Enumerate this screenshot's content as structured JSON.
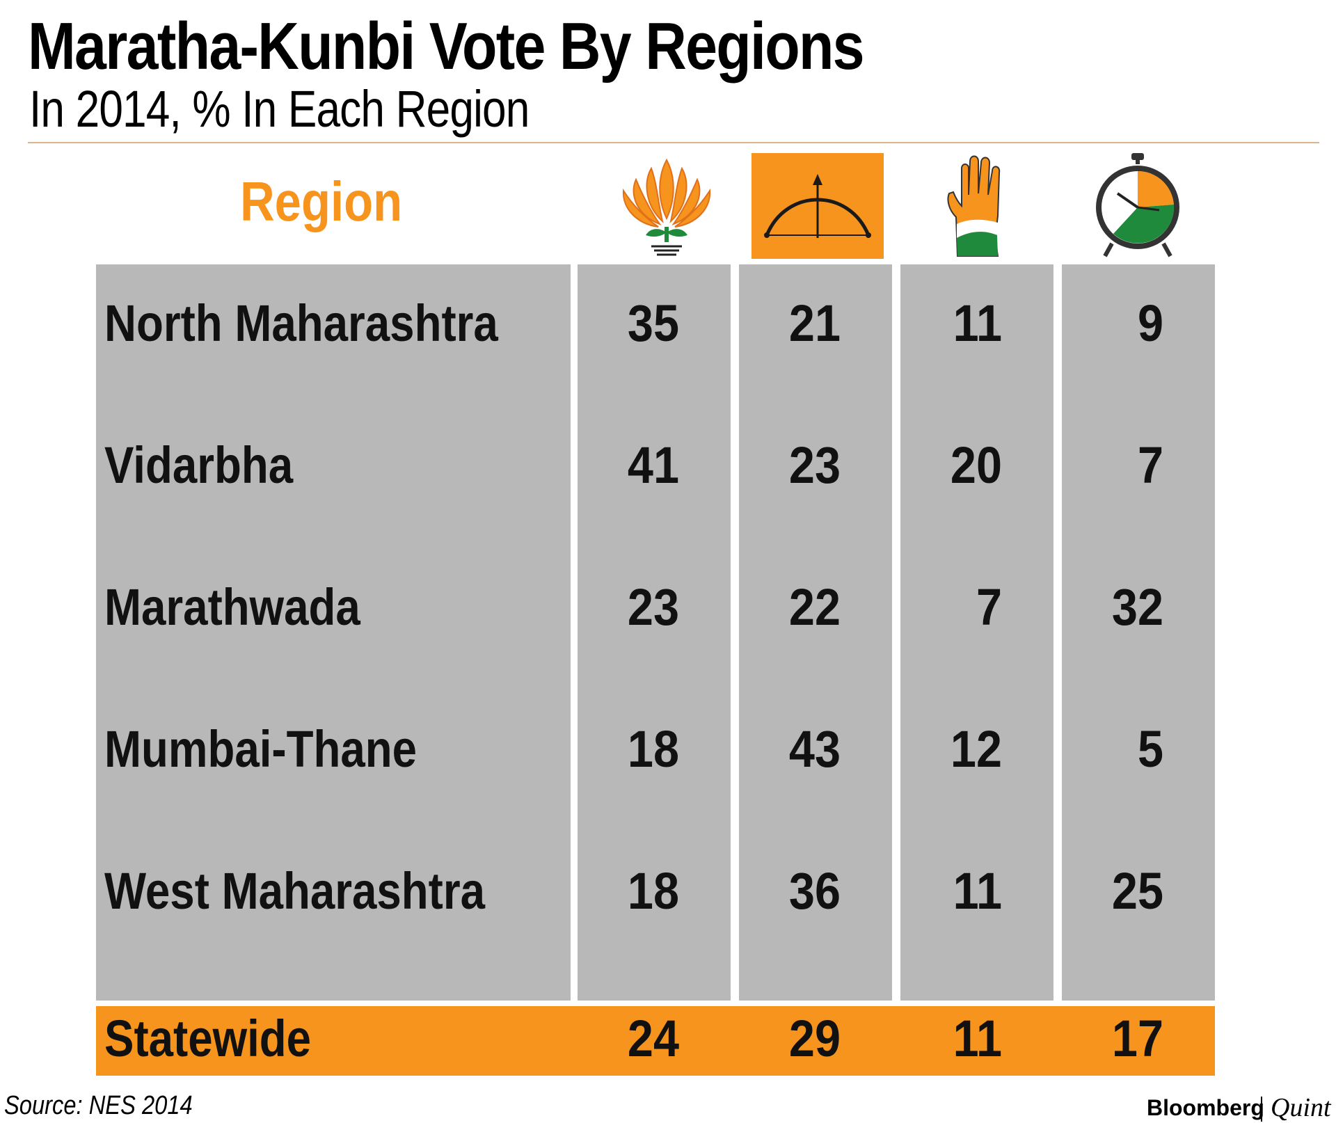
{
  "header": {
    "title": "Maratha-Kunbi Vote By Regions",
    "subtitle": "In 2014, % In Each Region"
  },
  "table": {
    "region_header": "Region",
    "party_icons": [
      "lotus-icon",
      "bow-and-arrow-icon",
      "hand-icon",
      "clock-icon"
    ],
    "rows": [
      {
        "region": "North Maharashtra",
        "values": [
          "35",
          "21",
          "11",
          "9"
        ]
      },
      {
        "region": "Vidarbha",
        "values": [
          "41",
          "23",
          "20",
          "7"
        ]
      },
      {
        "region": "Marathwada",
        "values": [
          "23",
          "22",
          "7",
          "32"
        ]
      },
      {
        "region": "Mumbai-Thane",
        "values": [
          "18",
          "43",
          "12",
          "5"
        ]
      },
      {
        "region": "West Maharashtra",
        "values": [
          "18",
          "36",
          "11",
          "25"
        ]
      }
    ],
    "statewide": {
      "region": "Statewide",
      "values": [
        "24",
        "29",
        "11",
        "17"
      ]
    }
  },
  "colors": {
    "accent_orange": "#f7941d",
    "panel_grey": "#b8b8b8",
    "green": "#1f8a3b"
  },
  "chart_data": {
    "type": "table",
    "title": "Maratha-Kunbi Vote By Regions",
    "subtitle": "In 2014, % In Each Region",
    "categories": [
      "North Maharashtra",
      "Vidarbha",
      "Marathwada",
      "Mumbai-Thane",
      "West Maharashtra",
      "Statewide"
    ],
    "series": [
      {
        "icon": "lotus-icon",
        "values": [
          35,
          41,
          23,
          18,
          18,
          24
        ]
      },
      {
        "icon": "bow-and-arrow-icon",
        "values": [
          21,
          23,
          22,
          43,
          36,
          29
        ]
      },
      {
        "icon": "hand-icon",
        "values": [
          11,
          20,
          7,
          12,
          11,
          11
        ]
      },
      {
        "icon": "clock-icon",
        "values": [
          9,
          7,
          32,
          5,
          25,
          17
        ]
      }
    ]
  },
  "footer": {
    "source": "Source: NES 2014",
    "brand": "Bloomberg",
    "brand2": "Quint"
  }
}
